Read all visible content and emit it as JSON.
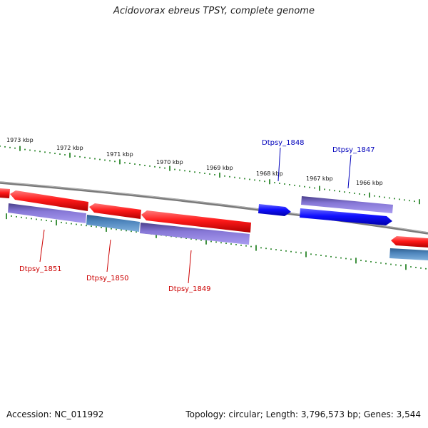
{
  "title": "Acidovorax ebreus TPSY, complete genome",
  "footer": {
    "accession": "Accession: NC_011992",
    "summary": "Topology: circular; Length: 3,796,573 bp; Genes: 3,544"
  },
  "colors": {
    "forward_gene": "#0000ee",
    "reverse_gene": "#ee1111",
    "forward_cds": "#7766cc",
    "reverse_cds": "#4477bb",
    "backbone": "#8a8a8a",
    "tick": "#117711",
    "forward_label": "#0000bb",
    "reverse_label": "#cc0000"
  },
  "scale_labels": [
    "1973 kbp",
    "1972 kbp",
    "1971 kbp",
    "1970 kbp",
    "1969 kbp",
    "1968 kbp",
    "1967 kbp",
    "1966 kbp"
  ],
  "genes": [
    {
      "label": "Dtpsy_1851",
      "strand": "reverse"
    },
    {
      "label": "Dtpsy_1850",
      "strand": "reverse"
    },
    {
      "label": "Dtpsy_1849",
      "strand": "reverse"
    },
    {
      "label": "Dtpsy_1848",
      "strand": "forward"
    },
    {
      "label": "Dtpsy_1847",
      "strand": "forward"
    }
  ]
}
